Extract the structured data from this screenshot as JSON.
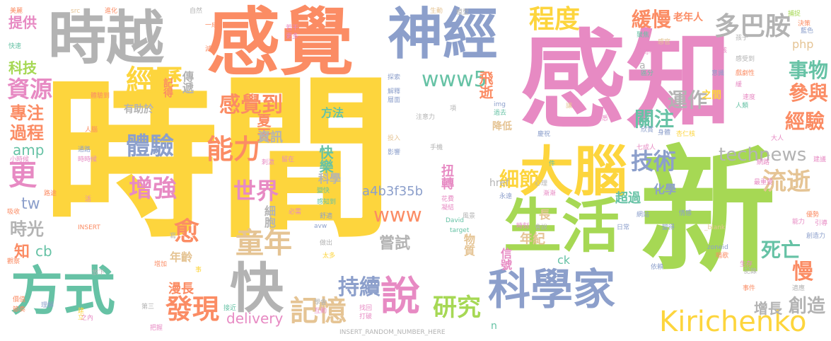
{
  "words": [
    {
      "text": "時間",
      "cls": "c1"
    },
    {
      "text": "感知",
      "cls": "c4"
    },
    {
      "text": "新",
      "cls": "c5"
    },
    {
      "text": "感覺",
      "cls": "c2"
    },
    {
      "text": "時越",
      "cls": "c7"
    },
    {
      "text": "神經",
      "cls": "c3"
    },
    {
      "text": "生活",
      "cls": "c5"
    },
    {
      "text": "方式",
      "cls": "c6"
    },
    {
      "text": "科學家",
      "cls": "c3"
    },
    {
      "text": "大腦",
      "cls": "c1"
    },
    {
      "text": "快",
      "cls": "c7"
    },
    {
      "text": "說",
      "cls": "c4"
    },
    {
      "text": "Kirichenko",
      "cls": "c1"
    },
    {
      "text": "經歷",
      "cls": "c1"
    },
    {
      "text": "多巴胺",
      "cls": "c7"
    },
    {
      "text": "程度",
      "cls": "c1"
    },
    {
      "text": "童年",
      "cls": "c8"
    },
    {
      "text": "記憶",
      "cls": "c8"
    },
    {
      "text": "發現",
      "cls": "c2"
    },
    {
      "text": "研究",
      "cls": "c5"
    },
    {
      "text": "流逝",
      "cls": "c8"
    },
    {
      "text": "技術",
      "cls": "c3"
    },
    {
      "text": "能力",
      "cls": "c2"
    },
    {
      "text": "世界",
      "cls": "c4"
    },
    {
      "text": "體驗",
      "cls": "c3"
    },
    {
      "text": "增強",
      "cls": "c4"
    },
    {
      "text": "資源",
      "cls": "c4"
    },
    {
      "text": "www5",
      "cls": "c6"
    },
    {
      "text": "感覺到",
      "cls": "c2"
    },
    {
      "text": "緩慢",
      "cls": "c2"
    },
    {
      "text": "事物",
      "cls": "c6"
    },
    {
      "text": "運作",
      "cls": "c7"
    },
    {
      "text": "參與",
      "cls": "c2"
    },
    {
      "text": "經驗",
      "cls": "c2"
    },
    {
      "text": "關注",
      "cls": "c6"
    },
    {
      "text": "technews",
      "cls": "c7"
    },
    {
      "text": "更",
      "cls": "c4"
    },
    {
      "text": "愈",
      "cls": "c2"
    },
    {
      "text": "持續",
      "cls": "c3"
    },
    {
      "text": "細節",
      "cls": "c1"
    },
    {
      "text": "死亡",
      "cls": "c6"
    },
    {
      "text": "慢",
      "cls": "c2"
    },
    {
      "text": "創造",
      "cls": "c7"
    },
    {
      "text": "增長",
      "cls": "c7"
    },
    {
      "text": "www",
      "cls": "c2"
    },
    {
      "text": "嘗試",
      "cls": "c7"
    },
    {
      "text": "a4b3f35b",
      "cls": "c3"
    },
    {
      "text": "delivery",
      "cls": "c4"
    },
    {
      "text": "時光",
      "cls": "c7"
    },
    {
      "text": "專注",
      "cls": "c2"
    },
    {
      "text": "過程",
      "cls": "c2"
    },
    {
      "text": "提供",
      "cls": "c4"
    },
    {
      "text": "科技",
      "cls": "c5"
    },
    {
      "text": "amp",
      "cls": "c6"
    },
    {
      "text": "tw",
      "cls": "c3"
    },
    {
      "text": "cb",
      "cls": "c6"
    },
    {
      "text": "知",
      "cls": "c2"
    },
    {
      "text": "飛逝",
      "cls": "c2"
    },
    {
      "text": "夏天",
      "cls": "c2"
    },
    {
      "text": "資訊",
      "cls": "c7"
    },
    {
      "text": "方法",
      "cls": "c6"
    },
    {
      "text": "快樂",
      "cls": "c6"
    },
    {
      "text": "科學",
      "cls": "c7"
    },
    {
      "text": "扭轉",
      "cls": "c4"
    },
    {
      "text": "化學",
      "cls": "c3"
    },
    {
      "text": "超過",
      "cls": "c6"
    },
    {
      "text": "降低",
      "cls": "c8"
    },
    {
      "text": "php",
      "cls": "c8"
    },
    {
      "text": "老年人",
      "cls": "c2"
    },
    {
      "text": "傳遞",
      "cls": "c7"
    },
    {
      "text": "記得",
      "cls": "c2"
    },
    {
      "text": "有助於",
      "cls": "c7"
    },
    {
      "text": "細胞",
      "cls": "c7"
    },
    {
      "text": "年齡",
      "cls": "c8"
    },
    {
      "text": "漫長",
      "cls": "c2"
    },
    {
      "text": "年紀",
      "cls": "c8"
    },
    {
      "text": "長",
      "cls": "c8"
    },
    {
      "text": "物質",
      "cls": "c8"
    },
    {
      "text": "信號",
      "cls": "c4"
    },
    {
      "text": "ck",
      "cls": "c6"
    },
    {
      "text": "href",
      "cls": "c7"
    },
    {
      "text": "n",
      "cls": "c6"
    },
    {
      "text": "之間",
      "cls": "c1"
    },
    {
      "text": "a",
      "cls": "c7"
    },
    {
      "text": "src",
      "cls": "c8"
    },
    {
      "text": "美麗",
      "cls": "c2"
    },
    {
      "text": "進化",
      "cls": "c2"
    },
    {
      "text": "自然",
      "cls": "c7"
    },
    {
      "text": "生動",
      "cls": "c8"
    },
    {
      "text": "模型",
      "cls": "c7"
    },
    {
      "text": "快速",
      "cls": "c6"
    },
    {
      "text": "藍色",
      "cls": "c3"
    },
    {
      "text": "聚焦",
      "cls": "c6"
    },
    {
      "text": "感受到",
      "cls": "c7"
    },
    {
      "text": "好奇心",
      "cls": "c4"
    },
    {
      "text": "戲劇性",
      "cls": "c2"
    },
    {
      "text": "人類",
      "cls": "c6"
    },
    {
      "text": "七成人",
      "cls": "c4"
    },
    {
      "text": "杏仁核",
      "cls": "c1"
    },
    {
      "text": "網路",
      "cls": "c4"
    },
    {
      "text": "情感",
      "cls": "c3"
    },
    {
      "text": "網站",
      "cls": "c3"
    },
    {
      "text": "日常",
      "cls": "c3"
    },
    {
      "text": "變得",
      "cls": "c3"
    },
    {
      "text": "_blank",
      "cls": "c8"
    },
    {
      "text": "zoneid",
      "cls": "c3"
    },
    {
      "text": "依賴",
      "cls": "c3"
    },
    {
      "text": "生存",
      "cls": "c4"
    },
    {
      "text": "事件",
      "cls": "c2"
    },
    {
      "text": "優勢",
      "cls": "c2"
    },
    {
      "text": "INSERT_RANDOM_NUMBER_HERE",
      "cls": "c7"
    },
    {
      "text": "INSERT",
      "cls": "c2"
    },
    {
      "text": "人腦",
      "cls": "c2"
    },
    {
      "text": "手機",
      "cls": "c7"
    },
    {
      "text": "投入",
      "cls": "c8"
    },
    {
      "text": "影響",
      "cls": "c3"
    },
    {
      "text": "注意力",
      "cls": "c7"
    },
    {
      "text": "探索",
      "cls": "c3"
    },
    {
      "text": "解釋",
      "cls": "c3"
    },
    {
      "text": "層面",
      "cls": "c3"
    },
    {
      "text": "David",
      "cls": "c6"
    },
    {
      "text": "target",
      "cls": "c6"
    },
    {
      "text": "avw",
      "cls": "c3"
    },
    {
      "text": "花費",
      "cls": "c4"
    },
    {
      "text": "凝結",
      "cls": "c4"
    },
    {
      "text": "心理",
      "cls": "c7"
    },
    {
      "text": "一成",
      "cls": "c2"
    },
    {
      "text": "減少",
      "cls": "c2"
    },
    {
      "text": "更多",
      "cls": "c4"
    },
    {
      "text": "若干",
      "cls": "c4"
    },
    {
      "text": "理解",
      "cls": "c3"
    },
    {
      "text": "節奏",
      "cls": "c2"
    },
    {
      "text": "價值",
      "cls": "c2"
    },
    {
      "text": "建立",
      "cls": "c1"
    },
    {
      "text": "把握",
      "cls": "c4"
    },
    {
      "text": "之內",
      "cls": "c4"
    },
    {
      "text": "第三",
      "cls": "c7"
    },
    {
      "text": "找回",
      "cls": "c4"
    },
    {
      "text": "打破",
      "cls": "c4"
    },
    {
      "text": "學會",
      "cls": "c7"
    },
    {
      "text": "互動",
      "cls": "c4"
    },
    {
      "text": "接近",
      "cls": "c6"
    },
    {
      "text": "放下",
      "cls": "c7"
    },
    {
      "text": "增加",
      "cls": "c2"
    },
    {
      "text": "身體",
      "cls": "c3"
    },
    {
      "text": "速度",
      "cls": "c4"
    },
    {
      "text": "欣賞",
      "cls": "c3"
    },
    {
      "text": "慶祝",
      "cls": "c3"
    },
    {
      "text": "會說",
      "cls": "c7"
    },
    {
      "text": "風景",
      "cls": "c7"
    },
    {
      "text": "舒適",
      "cls": "c3"
    },
    {
      "text": "太多",
      "cls": "c1"
    },
    {
      "text": "做出",
      "cls": "c7"
    },
    {
      "text": "永遠",
      "cls": "c3"
    },
    {
      "text": "漸漸",
      "cls": "c4"
    },
    {
      "text": "時刻",
      "cls": "c4"
    },
    {
      "text": "唱歌",
      "cls": "c2"
    },
    {
      "text": "記錄",
      "cls": "c7"
    },
    {
      "text": "孩子",
      "cls": "c7"
    },
    {
      "text": "決策",
      "cls": "c2"
    },
    {
      "text": "意識",
      "cls": "c3"
    },
    {
      "text": "區分",
      "cls": "c6"
    },
    {
      "text": "熟悉",
      "cls": "c4"
    },
    {
      "text": "大人",
      "cls": "c4"
    },
    {
      "text": "捕捉",
      "cls": "c5"
    },
    {
      "text": "創造力",
      "cls": "c3"
    },
    {
      "text": "時時候",
      "cls": "c4"
    },
    {
      "text": "通路",
      "cls": "c3"
    },
    {
      "text": "活",
      "cls": "c4"
    },
    {
      "text": "件",
      "cls": "c6"
    },
    {
      "text": "小時候",
      "cls": "c4"
    },
    {
      "text": "路途",
      "cls": "c2"
    },
    {
      "text": "img",
      "cls": "c3"
    },
    {
      "text": "過去",
      "cls": "c6"
    },
    {
      "text": "讓",
      "cls": "c8"
    },
    {
      "text": "刺激",
      "cls": "c4"
    },
    {
      "text": "留在",
      "cls": "c4"
    },
    {
      "text": "最重要",
      "cls": "c4"
    },
    {
      "text": "適應",
      "cls": "c7"
    },
    {
      "text": "必需",
      "cls": "c4"
    },
    {
      "text": "寫",
      "cls": "c7"
    },
    {
      "text": "事",
      "cls": "c1"
    },
    {
      "text": "感知到",
      "cls": "c6"
    },
    {
      "text": "變快",
      "cls": "c6"
    },
    {
      "text": "引導",
      "cls": "c4"
    },
    {
      "text": "能力",
      "cls": "c4"
    },
    {
      "text": "建議",
      "cls": "c4"
    },
    {
      "text": "小孩",
      "cls": "c4"
    },
    {
      "text": "感官",
      "cls": "c8"
    },
    {
      "text": "項",
      "cls": "c7"
    },
    {
      "text": "體驗到",
      "cls": "c2"
    },
    {
      "text": "緩",
      "cls": "c4"
    },
    {
      "text": "觀察",
      "cls": "c2"
    },
    {
      "text": "吸收",
      "cls": "c2"
    }
  ]
}
